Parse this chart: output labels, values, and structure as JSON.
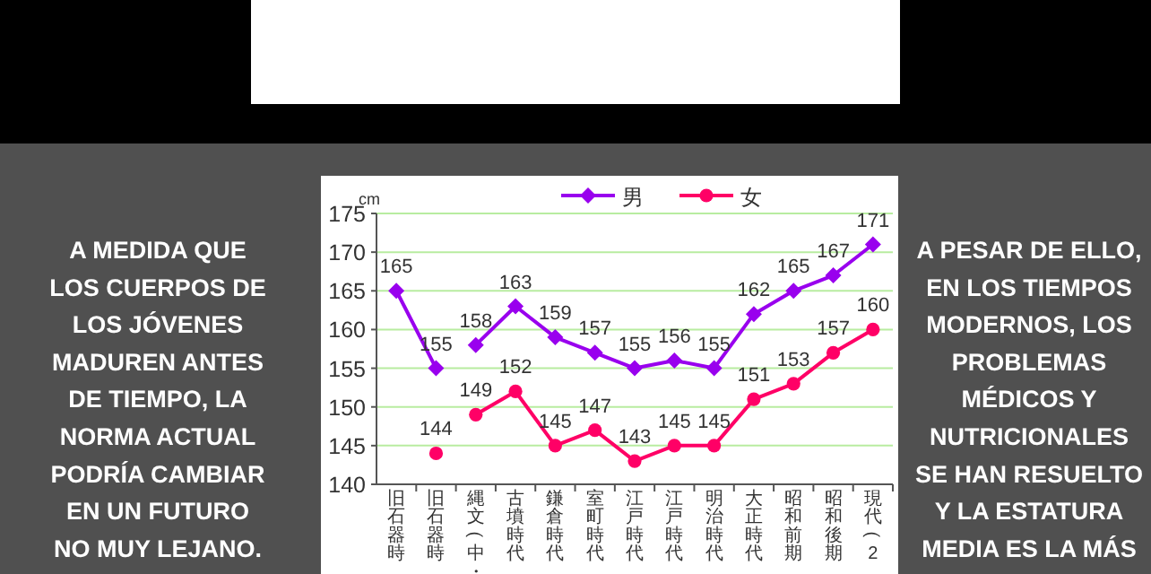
{
  "chart_data": {
    "type": "line",
    "ylabel": "cm",
    "categories": [
      "旧石器時",
      "旧石器時",
      "縄文(中・",
      "古墳時代",
      "鎌倉時代",
      "室町時代",
      "江戸時代",
      "江戸時代",
      "明治時代",
      "大正時代",
      "昭和前期",
      "昭和後期",
      "現代(2"
    ],
    "series": [
      {
        "name": "男",
        "color": "#9900ee",
        "marker": "diamond",
        "values": [
          null,
          null,
          158,
          163,
          159,
          157,
          155,
          156,
          155,
          162,
          165,
          167,
          171
        ]
      },
      {
        "name": "女",
        "color": "#ff0066",
        "marker": "circle",
        "values": [
          null,
          null,
          149,
          152,
          145,
          147,
          143,
          145,
          145,
          151,
          153,
          157,
          160
        ]
      },
      {
        "color": "#9900ee",
        "marker": "diamond",
        "values": [
          165,
          155,
          null,
          null,
          null,
          null,
          null,
          null,
          null,
          null,
          null,
          null,
          null
        ]
      },
      {
        "color": "#ff0066",
        "marker": "circle",
        "values": [
          null,
          144,
          null,
          null,
          null,
          null,
          null,
          null,
          null,
          null,
          null,
          null,
          null
        ]
      }
    ],
    "ylim": [
      140,
      175
    ],
    "yticks": [
      140,
      145,
      150,
      155,
      160,
      165,
      170,
      175
    ],
    "grid": "y",
    "legend": "top",
    "data_labels": true,
    "annotations": [
      "A MEDIDA QUE\nLOS CUERPOS DE\nLOS JÓVENES\nMADUREN ANTES\nDE TIEMPO, LA\nNORMA ACTUAL\nPODRÍA CAMBIAR\nEN UN FUTURO\nNO MUY LEJANO.",
      "A PESAR DE ELLO,\nEN LOS TIEMPOS\nMODERNOS, LOS\nPROBLEMAS\nMÉDICOS Y\nNUTRICIONALES\nSE HAN RESUELTO\nY LA ESTATURA\nMEDIA ES LA MÁS"
    ]
  }
}
